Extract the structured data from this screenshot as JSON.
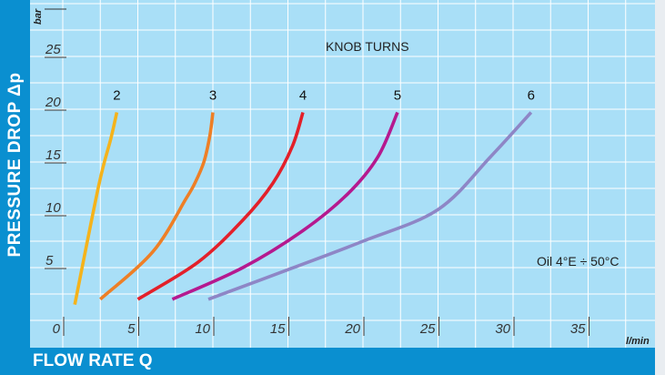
{
  "chart_data": {
    "type": "line",
    "xlabel": "FLOW RATE Q",
    "ylabel": "PRESSURE DROP Δp",
    "x_unit": "l/min",
    "y_unit": "bar",
    "xlim": [
      0,
      40
    ],
    "ylim": [
      0,
      28
    ],
    "x_ticks": [
      "0",
      "5",
      "10",
      "15",
      "20",
      "25",
      "30",
      "35"
    ],
    "y_ticks": [
      "5",
      "10",
      "15",
      "20",
      "25"
    ],
    "grid": true,
    "legend_title": "KNOB TURNS",
    "annotation": "Oil 4°E ÷ 50°C",
    "series": [
      {
        "name": "2",
        "color": "#f5b31b",
        "points": [
          [
            0.8,
            1.5
          ],
          [
            2.4,
            12.8
          ],
          [
            3.2,
            17.2
          ],
          [
            3.6,
            19.7
          ]
        ]
      },
      {
        "name": "3",
        "color": "#ee7f26",
        "points": [
          [
            2.5,
            2.0
          ],
          [
            6.0,
            6.5
          ],
          [
            8.2,
            11.5
          ],
          [
            8.8,
            13.0
          ],
          [
            9.4,
            15.0
          ],
          [
            9.8,
            17.5
          ],
          [
            10.0,
            19.7
          ]
        ]
      },
      {
        "name": "4",
        "color": "#e3202a",
        "points": [
          [
            5.0,
            2.0
          ],
          [
            9.0,
            5.5
          ],
          [
            12.0,
            9.5
          ],
          [
            14.0,
            13.0
          ],
          [
            15.3,
            16.5
          ],
          [
            16.0,
            19.7
          ]
        ]
      },
      {
        "name": "5",
        "color": "#b5198f",
        "points": [
          [
            7.3,
            2.0
          ],
          [
            12.0,
            5.0
          ],
          [
            16.0,
            8.5
          ],
          [
            19.0,
            12.0
          ],
          [
            21.0,
            15.5
          ],
          [
            22.3,
            19.7
          ]
        ]
      },
      {
        "name": "6",
        "color": "#8e86c6",
        "points": [
          [
            9.7,
            2.0
          ],
          [
            15.0,
            4.8
          ],
          [
            20.0,
            7.5
          ],
          [
            25.0,
            10.5
          ],
          [
            28.5,
            15.5
          ],
          [
            31.2,
            19.7
          ]
        ]
      }
    ]
  }
}
